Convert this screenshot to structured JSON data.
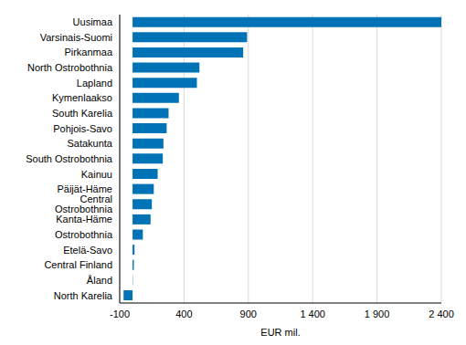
{
  "chart_data": {
    "type": "bar",
    "orientation": "horizontal",
    "x_label": "EUR mil.",
    "categories": [
      "Uusimaa",
      "Varsinais-Suomi",
      "Pirkanmaa",
      "North Ostrobothnia",
      "Lapland",
      "Kymenlaakso",
      "South Karelia",
      "Pohjois-Savo",
      "Satakunta",
      "South Ostrobothnia",
      "Kainuu",
      "Päijät-Häme",
      "Central Ostrobothnia",
      "Kanta-Häme",
      "Ostrobothnia",
      "Etelä-Savo",
      "Central Finland",
      "Åland",
      "North Karelia"
    ],
    "values": [
      2400,
      890,
      860,
      520,
      500,
      360,
      280,
      265,
      240,
      235,
      195,
      165,
      150,
      140,
      80,
      15,
      10,
      2,
      -70
    ],
    "color": "#0072b6",
    "xlim": [
      -100,
      2400
    ],
    "xticks": [
      -100,
      400,
      900,
      {
        "value": 1400,
        "label": "1 400"
      },
      {
        "value": 1900,
        "label": "1 900"
      },
      {
        "value": 2400,
        "label": "2 400"
      }
    ],
    "grid": true
  }
}
